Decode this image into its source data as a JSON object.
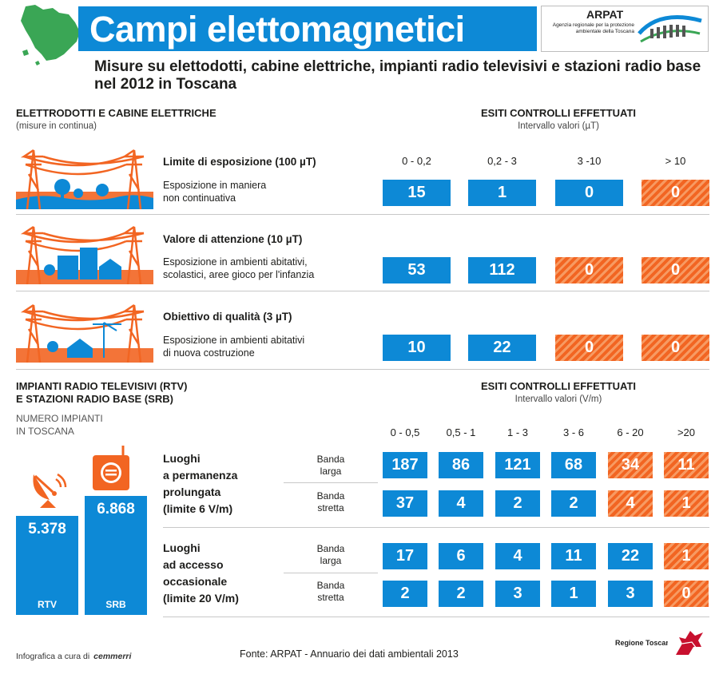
{
  "header": {
    "title": "Campi elettomagnetici",
    "subtitle": "Misure su elettodotti, cabine elettriche, impianti radio televisivi e stazioni radio base nel 2012 in Toscana"
  },
  "logo": {
    "name": "ARPAT",
    "tagline": "Agenzia regionale per la protezione ambientale della Toscana"
  },
  "colors": {
    "blue": "#0d89d6",
    "orange": "#f26522"
  },
  "elettrodotti": {
    "title": "ELETTRODOTTI E CABINE ELETTRICHE",
    "note": "(misure in continua)",
    "esiti_title": "ESITI CONTROLLI EFFETTUATI",
    "esiti_sub": "Intervallo valori (µT)",
    "ranges": [
      "0 - 0,2",
      "0,2 - 3",
      "3 -10",
      "> 10"
    ],
    "rows": [
      {
        "limit": "Limite di esposizione (100 µT)",
        "desc1": "Esposizione in maniera",
        "desc2": "non continuativa",
        "values": [
          "15",
          "1",
          "0",
          "0"
        ]
      },
      {
        "limit": "Valore di attenzione (10 µT)",
        "desc1": "Esposizione in ambienti abitativi,",
        "desc2": "scolastici, aree gioco per l'infanzia",
        "values": [
          "53",
          "112",
          "0",
          "0"
        ]
      },
      {
        "limit": "Obiettivo di qualità (3 µT)",
        "desc1": "Esposizione in ambienti abitativi",
        "desc2": "di nuova costruzione",
        "values": [
          "10",
          "22",
          "0",
          "0"
        ]
      }
    ]
  },
  "impianti": {
    "title1": "IMPIANTI RADIO TELEVISIVI (RTV)",
    "title2": "E STAZIONI RADIO BASE (SRB)",
    "count_label1": "NUMERO IMPIANTI",
    "count_label2": "IN TOSCANA",
    "rtv_value": "5.378",
    "rtv_label": "RTV",
    "srb_value": "6.868",
    "srb_label": "SRB",
    "esiti_title": "ESITI CONTROLLI EFFETTUATI",
    "esiti_sub": "Intervallo valori (V/m)",
    "ranges": [
      "0 - 0,5",
      "0,5 - 1",
      "1 - 3",
      "3 - 6",
      "6 - 20",
      ">20"
    ],
    "groups": [
      {
        "l1": "Luoghi",
        "l2": "a permanenza",
        "l3": "prolungata",
        "l4": "(limite 6 V/m)",
        "rows": [
          {
            "b1": "Banda",
            "b2": "larga",
            "values": [
              "187",
              "86",
              "121",
              "68",
              "34",
              "11"
            ]
          },
          {
            "b1": "Banda",
            "b2": "stretta",
            "values": [
              "37",
              "4",
              "2",
              "2",
              "4",
              "1"
            ]
          }
        ]
      },
      {
        "l1": "Luoghi",
        "l2": "ad accesso",
        "l3": "occasionale",
        "l4": "(limite 20 V/m)",
        "rows": [
          {
            "b1": "Banda",
            "b2": "larga",
            "values": [
              "17",
              "6",
              "4",
              "11",
              "22",
              "1"
            ]
          },
          {
            "b1": "Banda",
            "b2": "stretta",
            "values": [
              "2",
              "2",
              "3",
              "1",
              "3",
              "0"
            ]
          }
        ]
      }
    ]
  },
  "footer": {
    "credit": "Infografica a cura di",
    "credit_brand": "cemmerri",
    "source": "Fonte: ARPAT - Annuario dei dati ambientali 2013",
    "region": "Regione Toscana"
  }
}
